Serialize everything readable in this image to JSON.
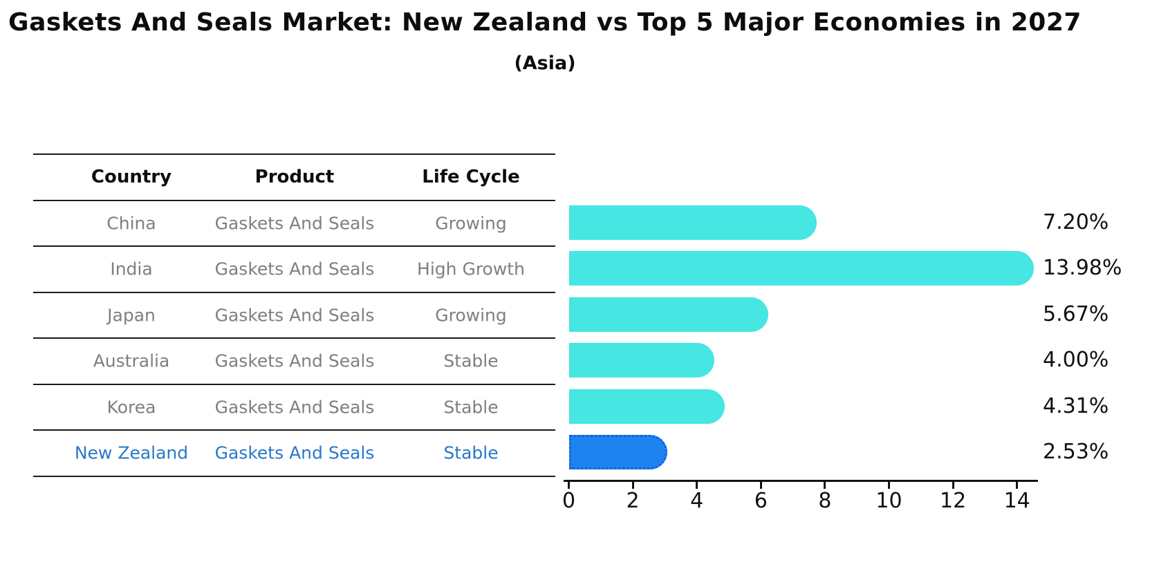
{
  "header": {
    "title": "Gaskets And Seals Market: New Zealand vs Top 5 Major Economies in 2027",
    "subtitle": "(Asia)"
  },
  "table": {
    "headers": [
      "Country",
      "Product",
      "Life Cycle"
    ],
    "rows": [
      {
        "country": "China",
        "product": "Gaskets And Seals",
        "life_cycle": "Growing"
      },
      {
        "country": "India",
        "product": "Gaskets And Seals",
        "life_cycle": "High Growth"
      },
      {
        "country": "Japan",
        "product": "Gaskets And Seals",
        "life_cycle": "Growing"
      },
      {
        "country": "Australia",
        "product": "Gaskets And Seals",
        "life_cycle": "Stable"
      },
      {
        "country": "Korea",
        "product": "Gaskets And Seals",
        "life_cycle": "Stable"
      },
      {
        "country": "New Zealand",
        "product": "Gaskets And Seals",
        "life_cycle": "Stable"
      }
    ]
  },
  "chart_data": {
    "type": "bar",
    "orientation": "horizontal",
    "title": "Gaskets And Seals Market: New Zealand vs Top 5 Major Economies in 2027",
    "subtitle": "(Asia)",
    "categories": [
      "China",
      "India",
      "Japan",
      "Australia",
      "Korea",
      "New Zealand"
    ],
    "values": [
      7.2,
      13.98,
      5.67,
      4.0,
      4.31,
      2.53
    ],
    "value_labels": [
      "7.20%",
      "13.98%",
      "5.67%",
      "4.00%",
      "4.31%",
      "2.53%"
    ],
    "xlabel": "",
    "ylabel": "",
    "xticks": [
      "0",
      "2",
      "4",
      "6",
      "8",
      "10",
      "12",
      "14"
    ],
    "xlim": [
      0,
      14.65
    ],
    "grid": false,
    "legend": null,
    "highlight_index": 5,
    "bar_color": "#46e6e2",
    "highlight_bar_color": "#1e82f0",
    "highlight_border_color": "#1463cf",
    "highlight_text_color": "#2878c8",
    "body_text_color": "#7f7f7f"
  }
}
